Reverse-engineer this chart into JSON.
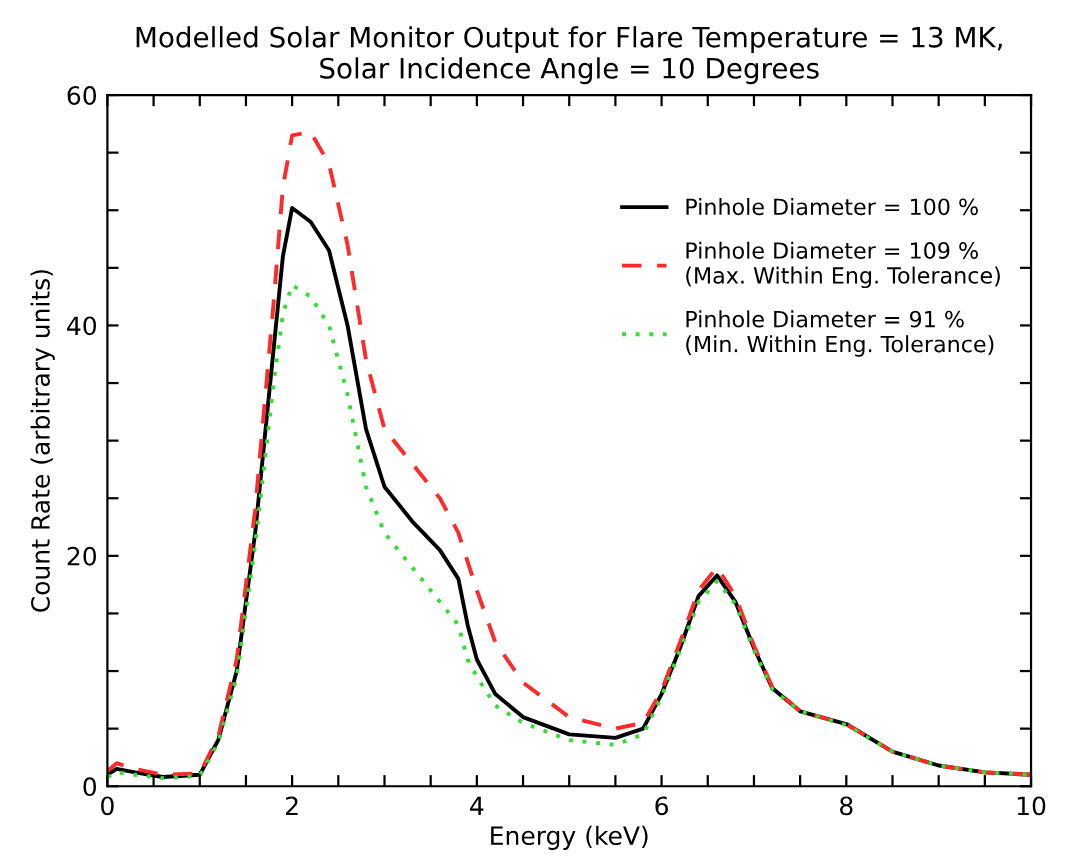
{
  "chart_data": {
    "type": "line",
    "title": "Modelled Solar Monitor Output for Flare Temperature = 13 MK,\nSolar Incidence Angle = 10 Degrees",
    "xlabel": "Energy (keV)",
    "ylabel": "Count Rate (arbitrary units)",
    "xlim": [
      0,
      10
    ],
    "ylim": [
      0,
      60
    ],
    "xticks": [
      0,
      {
        "value": 0.5,
        "label": null
      },
      {
        "value": 1,
        "label": null
      },
      {
        "value": 1.5,
        "label": null
      },
      2,
      {
        "value": 2.5,
        "label": null
      },
      {
        "value": 3,
        "label": null
      },
      {
        "value": 3.5,
        "label": null
      },
      4,
      {
        "value": 4.5,
        "label": null
      },
      {
        "value": 5,
        "label": null
      },
      {
        "value": 5.5,
        "label": null
      },
      6,
      {
        "value": 6.5,
        "label": null
      },
      {
        "value": 7,
        "label": null
      },
      {
        "value": 7.5,
        "label": null
      },
      8,
      {
        "value": 8.5,
        "label": null
      },
      {
        "value": 9,
        "label": null
      },
      {
        "value": 9.5,
        "label": null
      },
      10
    ],
    "yticks": [
      0,
      {
        "value": 5,
        "label": null
      },
      {
        "value": 10,
        "label": null
      },
      {
        "value": 15,
        "label": null
      },
      20,
      {
        "value": 25,
        "label": null
      },
      {
        "value": 30,
        "label": null
      },
      {
        "value": 35,
        "label": null
      },
      40,
      {
        "value": 45,
        "label": null
      },
      {
        "value": 50,
        "label": null
      },
      {
        "value": 55,
        "label": null
      },
      60
    ],
    "grid": false,
    "legend": "top right",
    "marker": "none",
    "x": [
      0,
      0.1,
      0.3,
      0.6,
      1.0,
      1.2,
      1.4,
      1.6,
      1.8,
      1.9,
      2.0,
      2.2,
      2.4,
      2.6,
      2.8,
      3.0,
      3.3,
      3.6,
      3.8,
      3.9,
      4.0,
      4.2,
      4.5,
      5.0,
      5.5,
      5.8,
      6.0,
      6.2,
      6.4,
      6.6,
      6.8,
      7.0,
      7.2,
      7.5,
      8.0,
      8.5,
      9.0,
      9.5,
      10
    ],
    "series": [
      {
        "name": "Pinhole Diameter = 100 %",
        "color": "#000000",
        "line_style": "solid",
        "values": [
          1.0,
          1.5,
          1.2,
          0.8,
          1.0,
          4,
          10,
          22,
          38,
          46,
          50.2,
          49,
          46.5,
          40,
          31,
          26,
          23,
          20.5,
          18,
          14,
          11,
          8,
          6,
          4.5,
          4.2,
          5,
          8,
          12,
          16.5,
          18.3,
          16,
          12,
          8.5,
          6.5,
          5.4,
          3,
          1.8,
          1.2,
          1.0
        ]
      },
      {
        "name": "Pinhole Diameter = 109 %\n(Max. Within Eng. Tolerance)",
        "color": "#ff2a2a",
        "line_style": "dashed",
        "values": [
          1.3,
          2.0,
          1.5,
          1.0,
          1.1,
          4.3,
          11,
          24,
          42,
          52,
          56.5,
          56.8,
          54,
          47,
          37,
          31,
          28,
          25,
          22,
          19.5,
          17,
          12.5,
          9,
          6,
          5,
          5.5,
          8.3,
          12.5,
          17,
          19,
          16.5,
          12.2,
          8.6,
          6.5,
          5.4,
          3,
          1.8,
          1.2,
          1.0
        ]
      },
      {
        "name": "Pinhole Diameter = 91 %\n(Min. Within Eng. Tolerance)",
        "color": "#33dd33",
        "line_style": "dotted",
        "values": [
          0.8,
          1.2,
          1.0,
          0.7,
          0.9,
          3.8,
          9.5,
          21,
          35,
          41,
          43.5,
          42.5,
          40,
          34,
          26,
          22,
          19,
          16,
          14,
          11,
          9.5,
          7,
          5.5,
          4,
          3.6,
          4.5,
          7.8,
          11.8,
          16,
          17.8,
          15.8,
          11.8,
          8.4,
          6.5,
          5.3,
          3,
          1.8,
          1.2,
          1.0
        ]
      }
    ]
  }
}
